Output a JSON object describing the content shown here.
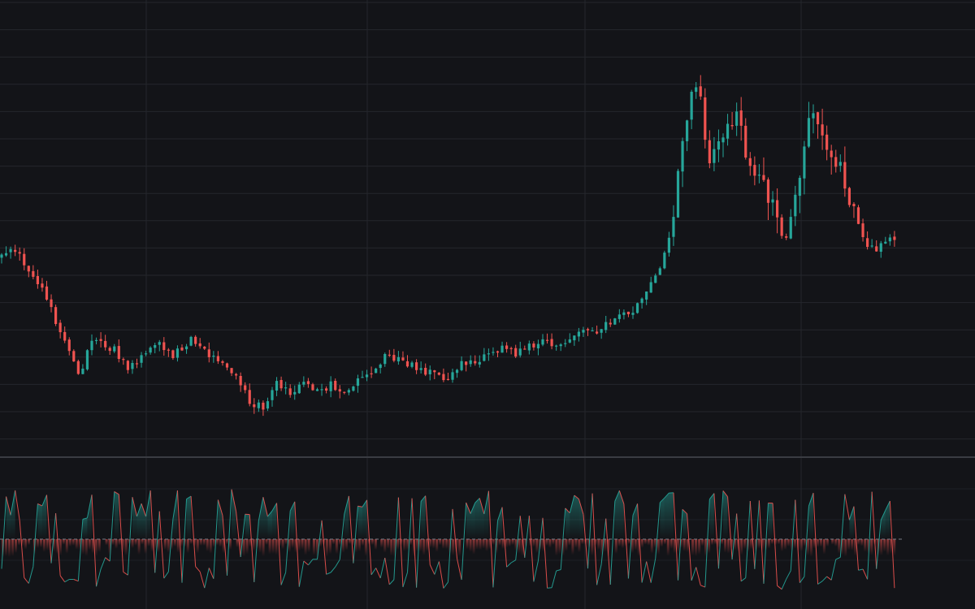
{
  "colors": {
    "background": "#131418",
    "grid": "#24262c",
    "separator": "#3a3c42",
    "up": "#26a69a",
    "down": "#ef5350",
    "zero_line": "#787b86"
  },
  "chart_data": [
    {
      "type": "candlestick",
      "title": "",
      "xlabel": "",
      "ylabel": "",
      "grid": true,
      "legend": "none",
      "ylim": [
        0,
        100
      ],
      "anchors": [
        [
          0,
          55
        ],
        [
          3,
          56
        ],
        [
          7,
          49
        ],
        [
          10,
          44
        ],
        [
          14,
          33
        ],
        [
          17,
          24
        ],
        [
          20,
          33
        ],
        [
          25,
          31
        ],
        [
          28,
          26
        ],
        [
          32,
          30
        ],
        [
          35,
          33
        ],
        [
          38,
          29
        ],
        [
          42,
          34
        ],
        [
          45,
          31
        ],
        [
          48,
          28
        ],
        [
          52,
          24
        ],
        [
          55,
          18
        ],
        [
          58,
          16
        ],
        [
          61,
          22
        ],
        [
          64,
          20
        ],
        [
          67,
          23
        ],
        [
          70,
          20
        ],
        [
          73,
          22
        ],
        [
          76,
          21
        ],
        [
          79,
          23
        ],
        [
          82,
          24
        ],
        [
          85,
          29
        ],
        [
          88,
          29
        ],
        [
          91,
          27
        ],
        [
          95,
          25
        ],
        [
          98,
          23
        ],
        [
          102,
          27
        ],
        [
          105,
          28
        ],
        [
          108,
          30
        ],
        [
          111,
          31
        ],
        [
          114,
          30
        ],
        [
          117,
          32
        ],
        [
          120,
          33
        ],
        [
          123,
          31
        ],
        [
          126,
          34
        ],
        [
          129,
          36
        ],
        [
          132,
          35
        ],
        [
          135,
          38
        ],
        [
          138,
          40
        ],
        [
          141,
          42
        ],
        [
          144,
          47
        ],
        [
          147,
          55
        ],
        [
          149,
          66
        ],
        [
          151,
          85
        ],
        [
          153,
          95
        ],
        [
          155,
          96
        ],
        [
          157,
          77
        ],
        [
          160,
          86
        ],
        [
          163,
          89
        ],
        [
          166,
          78
        ],
        [
          169,
          72
        ],
        [
          172,
          64
        ],
        [
          174,
          60
        ],
        [
          177,
          76
        ],
        [
          180,
          93
        ],
        [
          183,
          82
        ],
        [
          186,
          78
        ],
        [
          189,
          66
        ],
        [
          192,
          56
        ],
        [
          195,
          57
        ],
        [
          198,
          59
        ]
      ]
    },
    {
      "type": "line",
      "title": "",
      "xlabel": "",
      "ylabel": "",
      "grid": false,
      "legend": "none",
      "ylim": [
        -100,
        100
      ],
      "zero_line": 0,
      "bands": [
        [
          0,
          6
        ],
        [
          7,
          22
        ],
        [
          23,
          35
        ],
        [
          36,
          51
        ],
        [
          52,
          68
        ],
        [
          69,
          83
        ],
        [
          84,
          102
        ],
        [
          103,
          116
        ],
        [
          117,
          135
        ],
        [
          136,
          152
        ],
        [
          153,
          166
        ],
        [
          167,
          183
        ],
        [
          184,
          198
        ]
      ]
    }
  ]
}
